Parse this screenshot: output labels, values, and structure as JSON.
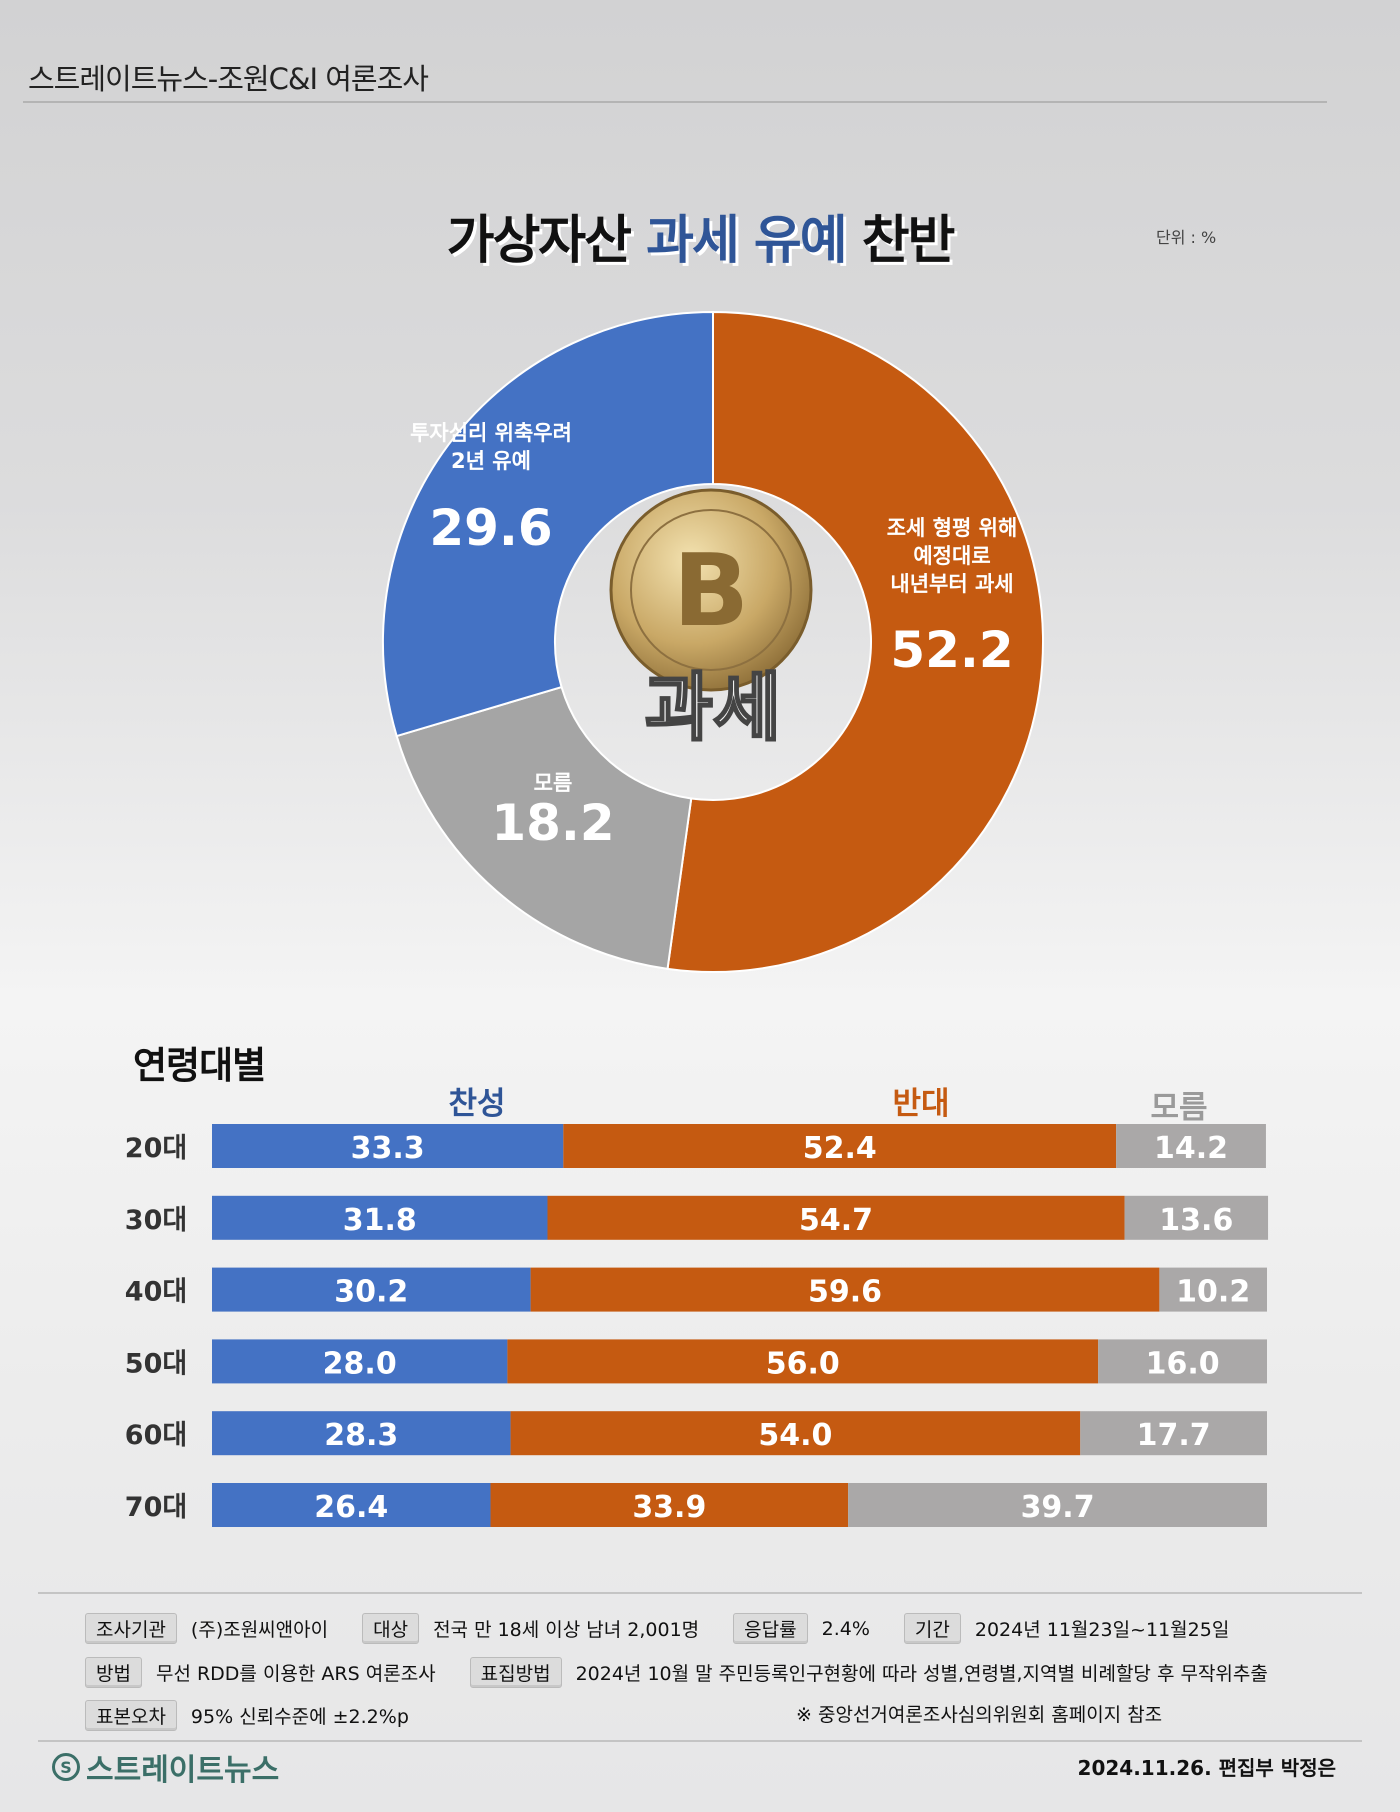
{
  "header": {
    "source": "스트레이트뉴스-조원C&I 여론조사"
  },
  "title": {
    "part1": "가상자산",
    "highlight": "과세 유예",
    "part2": "찬반"
  },
  "unit": "단위 : %",
  "colors": {
    "support": "#4472c4",
    "oppose": "#c55a11",
    "unknown": "#a9a7a7",
    "title_highlight": "#2f5597"
  },
  "center_image": {
    "icon": "bitcoin-coin-icon",
    "text": "과세"
  },
  "chart_data": [
    {
      "type": "pie",
      "donut": true,
      "slices": [
        {
          "label": "조세 형평 위해 예정대로 내년부터 과세",
          "label_lines": [
            "조세 형평 위해",
            "예정대로",
            "내년부터 과세"
          ],
          "value": 52.2,
          "color": "#c55a11"
        },
        {
          "label": "모름",
          "label_lines": [
            "모름"
          ],
          "value": 18.2,
          "color": "#a5a5a5"
        },
        {
          "label": "투자심리 위축우려 2년 유예",
          "label_lines": [
            "투자심리 위축우려",
            "2년 유예"
          ],
          "value": 29.6,
          "color": "#4472c4"
        }
      ]
    },
    {
      "type": "bar",
      "stacked": true,
      "orientation": "horizontal",
      "title": "연령대별",
      "categories": [
        "20대",
        "30대",
        "40대",
        "50대",
        "60대",
        "70대"
      ],
      "series": [
        {
          "name": "찬성",
          "color": "#4472c4",
          "values": [
            33.3,
            31.8,
            30.2,
            28.0,
            28.3,
            26.4
          ]
        },
        {
          "name": "반대",
          "color": "#c55a11",
          "values": [
            52.4,
            54.7,
            59.6,
            56.0,
            54.0,
            33.9
          ]
        },
        {
          "name": "모름",
          "color": "#aaa8a8",
          "values": [
            14.2,
            13.6,
            10.2,
            16.0,
            17.7,
            39.7
          ]
        }
      ]
    }
  ],
  "footer": {
    "rows": [
      [
        {
          "tag": "조사기관",
          "value": "(주)조원씨앤아이"
        },
        {
          "tag": "대상",
          "value": "전국 만 18세 이상 남녀 2,001명"
        },
        {
          "tag": "응답률",
          "value": "2.4%"
        },
        {
          "tag": "기간",
          "value": "2024년 11월23일~11월25일"
        }
      ],
      [
        {
          "tag": "방법",
          "value": "무선 RDD를 이용한 ARS 여론조사"
        },
        {
          "tag": "표집방법",
          "value": "2024년 10월 말 주민등록인구현황에 따라 성별,연령별,지역별 비례할당 후 무작위추출"
        }
      ],
      [
        {
          "tag": "표본오차",
          "value": "95% 신뢰수준에 ±2.2%p"
        }
      ]
    ],
    "note": "※ 중앙선거여론조사심의위원회 홈페이지 참조",
    "logo": "스트레이트뉴스",
    "date_author": "2024.11.26. 편집부 박정은"
  }
}
